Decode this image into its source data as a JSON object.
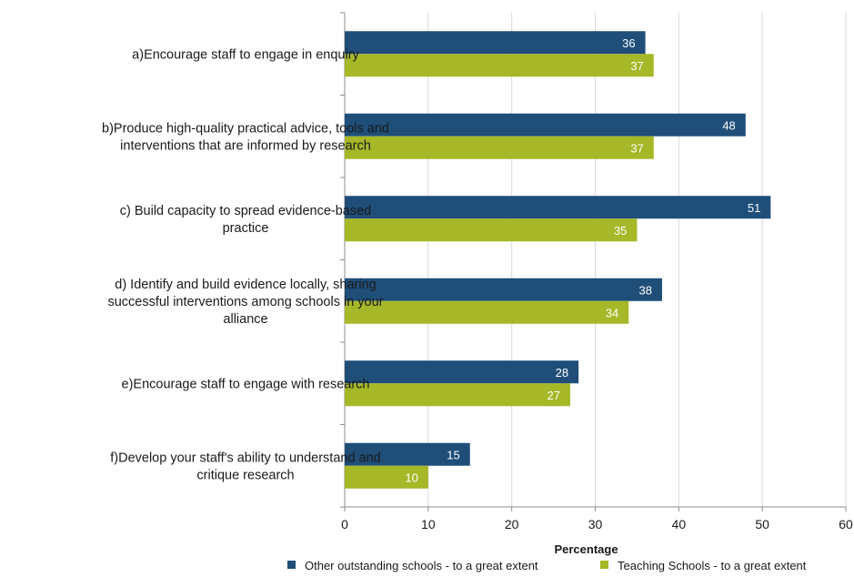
{
  "chart_data": {
    "type": "bar",
    "orientation": "horizontal",
    "categories": [
      [
        "a)Encourage staff to engage in enquiry"
      ],
      [
        "b)Produce high-quality practical advice, tools and",
        "interventions that are informed by research"
      ],
      [
        "c)  Build capacity to spread evidence-based",
        "practice"
      ],
      [
        "d) Identify and build evidence locally, sharing",
        "successful interventions among schools in your",
        "alliance"
      ],
      [
        "e)Encourage staff to engage with research"
      ],
      [
        "f)Develop your staff's ability to understand and",
        "critique research"
      ]
    ],
    "series": [
      {
        "name": "Other outstanding  schools - to a great extent",
        "color": "#1f4e79",
        "values": [
          36,
          48,
          51,
          38,
          28,
          15
        ]
      },
      {
        "name": "Teaching Schools - to a great extent",
        "color": "#a6b727",
        "values": [
          37,
          37,
          35,
          34,
          27,
          10
        ]
      }
    ],
    "xlabel": "Percentage",
    "xlim": [
      0,
      60
    ],
    "xticks": [
      0,
      10,
      20,
      30,
      40,
      50,
      60
    ],
    "grid": true,
    "legend": "bottom",
    "data_labels": true
  }
}
